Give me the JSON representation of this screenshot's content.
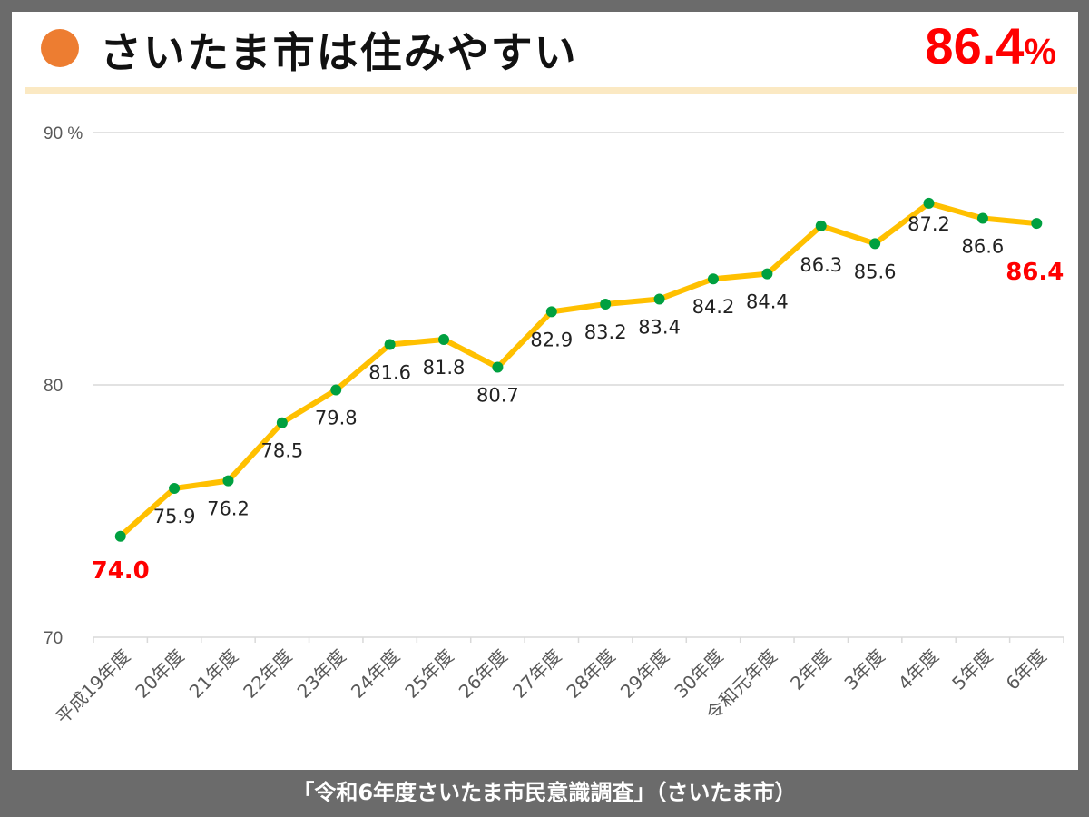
{
  "header": {
    "title": "さいたま市は住みやすい",
    "headline_value": "86.4",
    "headline_unit": "%"
  },
  "caption": "「令和6年度さいたま市民意識調査」（さいたま市）",
  "chart_data": {
    "type": "line",
    "title": "さいたま市は住みやすい",
    "ylabel": "%",
    "ylim": [
      70,
      90
    ],
    "yticks": [
      {
        "value": 90,
        "label": "90 %"
      },
      {
        "value": 80,
        "label": "80"
      },
      {
        "value": 70,
        "label": "70"
      }
    ],
    "grid": true,
    "categories": [
      "平成19年度",
      "20年度",
      "21年度",
      "22年度",
      "23年度",
      "24年度",
      "25年度",
      "26年度",
      "27年度",
      "28年度",
      "29年度",
      "30年度",
      "令和元年度",
      "2年度",
      "3年度",
      "4年度",
      "5年度",
      "6年度"
    ],
    "series": [
      {
        "name": "住みやすい",
        "values": [
          74.0,
          75.9,
          76.2,
          78.5,
          79.8,
          81.6,
          81.8,
          80.7,
          82.9,
          83.2,
          83.4,
          84.2,
          84.4,
          86.3,
          85.6,
          87.2,
          86.6,
          86.4
        ]
      }
    ],
    "labels": [
      "74.0",
      "75.9",
      "76.2",
      "78.5",
      "79.8",
      "81.6",
      "81.8",
      "80.7",
      "82.9",
      "83.2",
      "83.4",
      "84.2",
      "84.4",
      "86.3",
      "85.6",
      "87.2",
      "86.6",
      "86.4"
    ],
    "highlighted": [
      0,
      17
    ],
    "colors": {
      "line": "#ffc000",
      "marker": "#00a040",
      "highlight": "#ff0000",
      "grid": "#d9d9d9",
      "axis_text": "#595959"
    }
  }
}
